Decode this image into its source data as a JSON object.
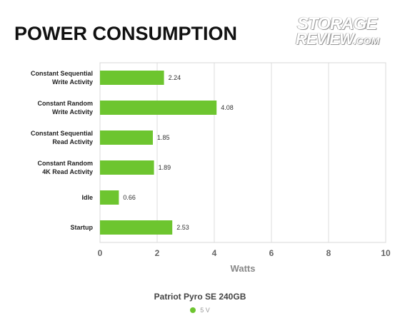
{
  "page": {
    "title": "POWER CONSUMPTION",
    "logo": {
      "line1": "STORAGE",
      "line2": "REVIEW",
      "line2_suffix": ".COM"
    }
  },
  "chart_data": {
    "type": "bar",
    "orientation": "horizontal",
    "title": "POWER CONSUMPTION",
    "xlabel": "Watts",
    "ylabel": "",
    "categories": [
      [
        "Constant Sequential",
        "Write Activity"
      ],
      [
        "Constant Random",
        "Write Activity"
      ],
      [
        "Constant Sequential",
        "Read Activity"
      ],
      [
        "Constant Random",
        "4K Read Activity"
      ],
      [
        "Idle"
      ],
      [
        "Startup"
      ]
    ],
    "legend_title": "Patriot Pyro SE 240GB",
    "series": [
      {
        "name": "5 V",
        "color": "#6dc52f",
        "values": [
          2.24,
          4.08,
          1.85,
          1.89,
          0.66,
          2.53
        ]
      }
    ],
    "xlim": [
      0,
      10
    ],
    "xticks": [
      "0",
      "2",
      "4",
      "6",
      "8",
      "10"
    ],
    "value_labels": [
      "2.24",
      "4.08",
      "1.85",
      "1.89",
      "0.66",
      "2.53"
    ],
    "grid": true,
    "legend_position": "bottom-center"
  }
}
